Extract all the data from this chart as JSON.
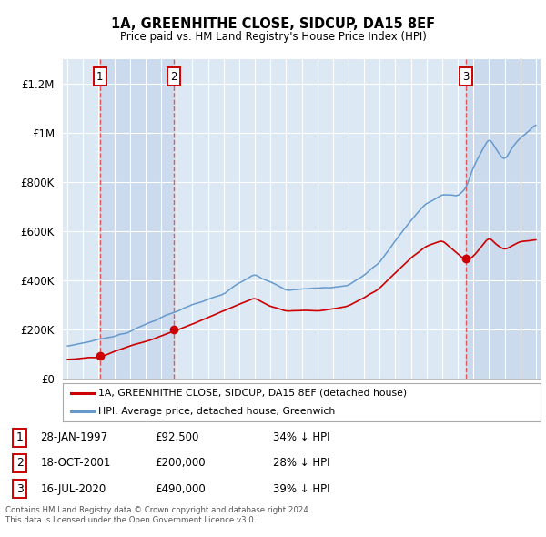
{
  "title": "1A, GREENHITHE CLOSE, SIDCUP, DA15 8EF",
  "subtitle": "Price paid vs. HM Land Registry's House Price Index (HPI)",
  "ylim": [
    0,
    1300000
  ],
  "xlim_start": 1994.7,
  "xlim_end": 2025.3,
  "background_color": "#ffffff",
  "plot_bg_color": "#dce9f5",
  "grid_color": "#ffffff",
  "sale_color": "#cc0000",
  "hpi_color": "#6699cc",
  "shade_color": "#c8d8ec",
  "sale_dates": [
    1997.08,
    2001.8,
    2020.54
  ],
  "sale_prices": [
    92500,
    200000,
    490000
  ],
  "sale_labels": [
    "1",
    "2",
    "3"
  ],
  "transactions": [
    {
      "label": "1",
      "date": "28-JAN-1997",
      "price": "£92,500",
      "hpi_diff": "34% ↓ HPI"
    },
    {
      "label": "2",
      "date": "18-OCT-2001",
      "price": "£200,000",
      "hpi_diff": "28% ↓ HPI"
    },
    {
      "label": "3",
      "date": "16-JUL-2020",
      "price": "£490,000",
      "hpi_diff": "39% ↓ HPI"
    }
  ],
  "legend_sale": "1A, GREENHITHE CLOSE, SIDCUP, DA15 8EF (detached house)",
  "legend_hpi": "HPI: Average price, detached house, Greenwich",
  "footer": "Contains HM Land Registry data © Crown copyright and database right 2024.\nThis data is licensed under the Open Government Licence v3.0.",
  "yticks": [
    0,
    200000,
    400000,
    600000,
    800000,
    1000000,
    1200000
  ],
  "ytick_labels": [
    "£0",
    "£200K",
    "£400K",
    "£600K",
    "£800K",
    "£1M",
    "£1.2M"
  ],
  "xticks": [
    1995,
    1996,
    1997,
    1998,
    1999,
    2000,
    2001,
    2002,
    2003,
    2004,
    2005,
    2006,
    2007,
    2008,
    2009,
    2010,
    2011,
    2012,
    2013,
    2014,
    2015,
    2016,
    2017,
    2018,
    2019,
    2020,
    2021,
    2022,
    2023,
    2024,
    2025
  ],
  "hpi_anchors_x": [
    1995,
    1997,
    1999,
    2001,
    2003,
    2005,
    2007,
    2008,
    2009,
    2010,
    2011,
    2012,
    2013,
    2014,
    2015,
    2016,
    2017,
    2018,
    2019,
    2020,
    2020.5,
    2021,
    2022,
    2022.5,
    2023,
    2023.5,
    2024,
    2025
  ],
  "hpi_anchors_y": [
    130000,
    160000,
    195000,
    255000,
    300000,
    340000,
    430000,
    400000,
    365000,
    370000,
    375000,
    380000,
    390000,
    430000,
    480000,
    570000,
    650000,
    720000,
    760000,
    750000,
    780000,
    870000,
    990000,
    940000,
    900000,
    960000,
    990000,
    1050000
  ],
  "red_anchors_x": [
    1995,
    1997.08,
    2001.8,
    2007,
    2008,
    2009,
    2010,
    2011,
    2012,
    2013,
    2014,
    2015,
    2016,
    2017,
    2018,
    2019,
    2020.54,
    2021,
    2022,
    2022.5,
    2023,
    2024,
    2025
  ],
  "red_anchors_y": [
    78000,
    92500,
    200000,
    340000,
    310000,
    290000,
    295000,
    295000,
    300000,
    310000,
    340000,
    380000,
    440000,
    500000,
    550000,
    570000,
    490000,
    510000,
    590000,
    560000,
    540000,
    570000,
    580000
  ]
}
